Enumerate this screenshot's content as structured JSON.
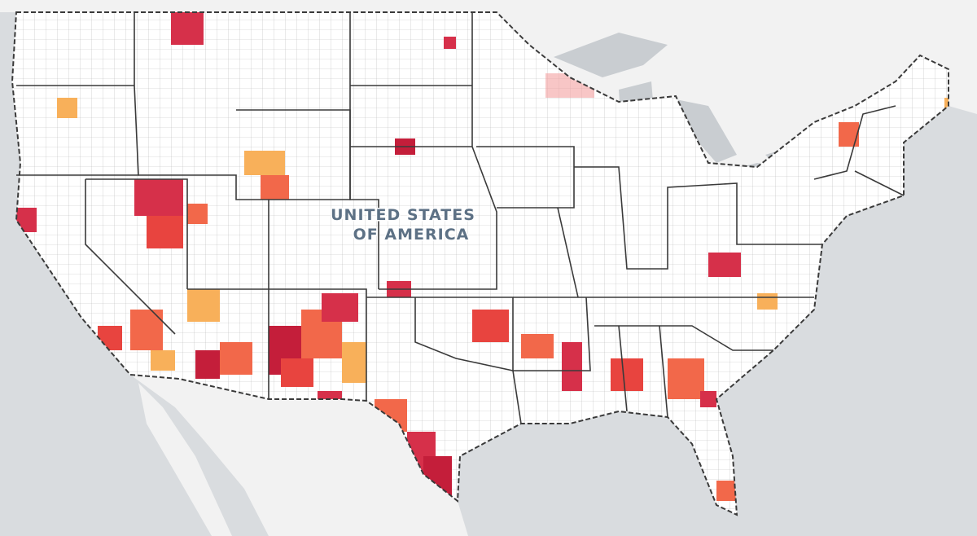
{
  "map": {
    "label_lines": [
      "UNITED STATES",
      "OF AMERICA"
    ]
  }
}
